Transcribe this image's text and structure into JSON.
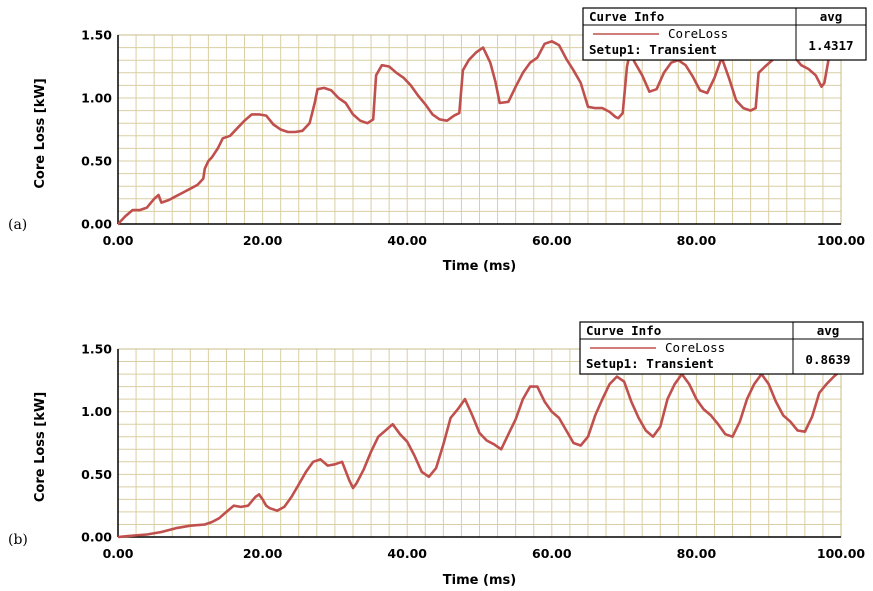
{
  "chart_data": [
    {
      "type": "line",
      "panel_label": "(a)",
      "xlabel": "Time (ms)",
      "ylabel": "Core Loss [kW]",
      "xlim": [
        0,
        100
      ],
      "ylim": [
        0,
        1.5
      ],
      "xticks": [
        "0.00",
        "20.00",
        "40.00",
        "60.00",
        "80.00",
        "100.00"
      ],
      "yticks": [
        "0.00",
        "0.50",
        "1.00",
        "1.50"
      ],
      "grid": true,
      "legend": {
        "position": "top-right",
        "header": "Curve Info",
        "stat_header": "avg",
        "entry": "CoreLoss",
        "setup": "Setup1: Transient",
        "value": "1.4317"
      },
      "series": [
        {
          "name": "CoreLoss",
          "color": "#c0504d",
          "x": [
            0,
            1,
            2,
            3,
            4,
            5,
            5.6,
            6,
            7,
            8,
            9,
            10,
            11,
            11.8,
            12,
            12.5,
            13,
            13.8,
            14.5,
            15.5,
            16.5,
            17.5,
            18.5,
            19.5,
            20.5,
            21.5,
            22.5,
            23.5,
            24.5,
            25.5,
            26.5,
            27.2,
            27.6,
            28.5,
            29.5,
            30.5,
            31.5,
            32.5,
            33.5,
            34.5,
            35.3,
            35.7,
            36.5,
            37.5,
            38.5,
            39.5,
            40.5,
            41.5,
            42.5,
            43.5,
            44.5,
            45.5,
            46.5,
            47.2,
            47.7,
            48.5,
            49.5,
            50.5,
            51.5,
            52.2,
            52.8,
            54,
            55,
            56,
            57,
            58,
            59,
            60,
            61,
            62,
            63,
            64,
            65,
            66,
            67,
            68,
            68.8,
            69.2,
            69.8,
            70.4,
            70.8,
            71.5,
            72.5,
            73.5,
            74.5,
            75.5,
            76.5,
            77.5,
            78.5,
            79.5,
            80.5,
            81.5,
            82.5,
            83.5,
            84.5,
            85.5,
            86.5,
            87.5,
            88.2,
            88.6,
            89.5,
            90.5,
            91.5,
            92.5,
            93.5,
            94.5,
            95.5,
            96.5,
            97.3,
            97.7,
            98.5
          ],
          "y": [
            0,
            0.06,
            0.11,
            0.11,
            0.13,
            0.2,
            0.23,
            0.17,
            0.19,
            0.22,
            0.25,
            0.28,
            0.31,
            0.36,
            0.44,
            0.5,
            0.53,
            0.6,
            0.68,
            0.7,
            0.76,
            0.82,
            0.87,
            0.87,
            0.86,
            0.79,
            0.75,
            0.73,
            0.73,
            0.74,
            0.8,
            0.96,
            1.07,
            1.08,
            1.06,
            1.0,
            0.96,
            0.87,
            0.82,
            0.8,
            0.83,
            1.18,
            1.26,
            1.25,
            1.2,
            1.16,
            1.1,
            1.02,
            0.95,
            0.87,
            0.83,
            0.82,
            0.86,
            0.88,
            1.22,
            1.3,
            1.36,
            1.4,
            1.28,
            1.13,
            0.96,
            0.97,
            1.09,
            1.2,
            1.28,
            1.32,
            1.43,
            1.45,
            1.42,
            1.31,
            1.22,
            1.12,
            0.93,
            0.92,
            0.92,
            0.89,
            0.85,
            0.84,
            0.88,
            1.25,
            1.36,
            1.28,
            1.18,
            1.05,
            1.07,
            1.2,
            1.28,
            1.3,
            1.26,
            1.17,
            1.06,
            1.04,
            1.16,
            1.32,
            1.16,
            0.98,
            0.92,
            0.9,
            0.92,
            1.2,
            1.25,
            1.3,
            1.36,
            1.38,
            1.33,
            1.26,
            1.23,
            1.18,
            1.09,
            1.12,
            1.38
          ]
        }
      ]
    },
    {
      "type": "line",
      "panel_label": "(b)",
      "xlabel": "Time (ms)",
      "ylabel": "Core Loss [kW]",
      "xlim": [
        0,
        100
      ],
      "ylim": [
        0,
        1.5
      ],
      "xticks": [
        "0.00",
        "20.00",
        "40.00",
        "60.00",
        "80.00",
        "100.00"
      ],
      "yticks": [
        "0.00",
        "0.50",
        "1.00",
        "1.50"
      ],
      "grid": true,
      "legend": {
        "position": "top-right",
        "header": "Curve Info",
        "stat_header": "avg",
        "entry": "CoreLoss",
        "setup": "Setup1: Transient",
        "value": "0.8639"
      },
      "series": [
        {
          "name": "CoreLoss",
          "color": "#c0504d",
          "x": [
            0,
            2,
            4,
            6,
            8,
            10,
            12,
            13,
            14,
            15,
            16,
            17,
            18,
            19,
            19.5,
            20,
            20.5,
            21,
            22,
            23,
            24,
            25,
            26,
            27,
            28,
            29,
            30,
            31,
            32,
            32.5,
            33,
            34,
            35,
            36,
            37,
            38,
            39,
            40,
            41,
            42,
            43,
            44,
            45,
            46,
            47,
            48,
            49,
            50,
            51,
            52,
            53,
            54,
            55,
            56,
            57,
            58,
            59,
            60,
            61,
            62,
            63,
            64,
            65,
            66,
            67,
            68,
            69,
            70,
            71,
            72,
            73,
            74,
            75,
            76,
            77,
            78,
            79,
            80,
            81,
            82,
            83,
            84,
            85,
            86,
            87,
            88,
            89,
            90,
            91,
            92,
            93,
            94,
            95,
            96,
            97,
            98,
            99,
            100
          ],
          "y": [
            0,
            0.01,
            0.02,
            0.04,
            0.07,
            0.09,
            0.1,
            0.12,
            0.15,
            0.2,
            0.25,
            0.24,
            0.25,
            0.32,
            0.34,
            0.3,
            0.25,
            0.23,
            0.21,
            0.24,
            0.32,
            0.42,
            0.52,
            0.6,
            0.62,
            0.57,
            0.58,
            0.6,
            0.45,
            0.39,
            0.43,
            0.54,
            0.68,
            0.8,
            0.85,
            0.9,
            0.82,
            0.76,
            0.65,
            0.52,
            0.48,
            0.55,
            0.74,
            0.95,
            1.02,
            1.1,
            0.97,
            0.83,
            0.77,
            0.74,
            0.7,
            0.82,
            0.94,
            1.1,
            1.2,
            1.2,
            1.08,
            1.0,
            0.95,
            0.85,
            0.75,
            0.73,
            0.8,
            0.97,
            1.1,
            1.22,
            1.28,
            1.24,
            1.08,
            0.95,
            0.85,
            0.8,
            0.88,
            1.1,
            1.22,
            1.3,
            1.22,
            1.1,
            1.02,
            0.97,
            0.9,
            0.82,
            0.8,
            0.92,
            1.1,
            1.22,
            1.3,
            1.22,
            1.08,
            0.97,
            0.92,
            0.85,
            0.84,
            0.96,
            1.15,
            1.22,
            1.28,
            1.33
          ]
        }
      ]
    }
  ]
}
